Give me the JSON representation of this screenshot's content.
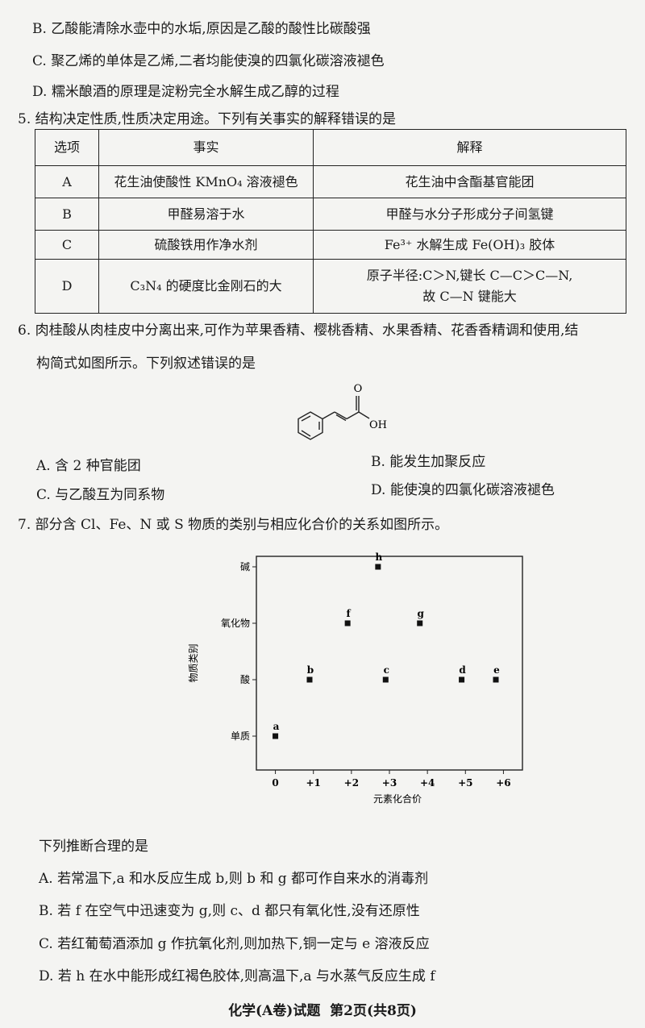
{
  "q4": {
    "options": [
      "B. 乙酸能清除水壶中的水垢,原因是乙酸的酸性比碳酸强",
      "C. 聚乙烯的单体是乙烯,二者均能使溴的四氯化碳溶液褪色",
      "D. 糯米酿酒的原理是淀粉完全水解生成乙醇的过程"
    ]
  },
  "q5": {
    "stem": "5. 结构决定性质,性质决定用途。下列有关事实的解释错误的是",
    "table": {
      "header": [
        "选项",
        "事实",
        "解释"
      ],
      "rows": [
        [
          "A",
          "花生油使酸性 KMnO₄ 溶液褪色",
          [
            "花生油中含酯基官能团"
          ]
        ],
        [
          "B",
          "甲醛易溶于水",
          [
            "甲醛与水分子形成分子间氢键"
          ]
        ],
        [
          "C",
          "硫酸铁用作净水剂",
          [
            "Fe³⁺ 水解生成 Fe(OH)₃ 胶体"
          ]
        ],
        [
          "D",
          "C₃N₄ 的硬度比金刚石的大",
          [
            "原子半径:C＞N,键长 C—C＞C—N,",
            "故 C—N 键能大"
          ]
        ]
      ]
    }
  },
  "q6": {
    "stem": [
      "6. 肉桂酸从肉桂皮中分离出来,可作为苹果香精、樱桃香精、水果香精、花香香精调和使用,结",
      "构简式如图所示。下列叙述错误的是"
    ],
    "structure": {
      "atoms": [
        "O",
        "OH"
      ]
    },
    "options": [
      "A. 含 2 种官能团",
      "B. 能发生加聚反应",
      "C. 与乙酸互为同系物",
      "D. 能使溴的四氯化碳溶液褪色"
    ]
  },
  "q7": {
    "stem": "7. 部分含 Cl、Fe、N 或 S 物质的类别与相应化合价的关系如图所示。",
    "chart": {
      "type": "scatter",
      "x_label": "元素化合价",
      "y_label": "物质类别",
      "y_categories": [
        "单质",
        "酸",
        "氧化物",
        "碱"
      ],
      "xlim": [
        -0.5,
        6.5
      ],
      "xticks": [
        0,
        {
          "value": 1,
          "label": "+1"
        },
        {
          "value": 2,
          "label": "+2"
        },
        {
          "value": 3,
          "label": "+3"
        },
        {
          "value": 4,
          "label": "+4"
        },
        {
          "value": 5,
          "label": "+5"
        },
        {
          "value": 6,
          "label": "+6"
        }
      ],
      "points": [
        {
          "label": "a",
          "x": 0,
          "y": "单质"
        },
        {
          "label": "b",
          "x": 0.9,
          "y": "酸"
        },
        {
          "label": "f",
          "x": 1.9,
          "y": "氧化物"
        },
        {
          "label": "h",
          "x": 2.7,
          "y": "碱"
        },
        {
          "label": "c",
          "x": 2.9,
          "y": "酸"
        },
        {
          "label": "g",
          "x": 3.8,
          "y": "氧化物"
        },
        {
          "label": "d",
          "x": 4.9,
          "y": "酸"
        },
        {
          "label": "e",
          "x": 5.8,
          "y": "酸"
        }
      ]
    },
    "prompt": "下列推断合理的是",
    "options": [
      "A. 若常温下,a 和水反应生成 b,则 b 和 g 都可作自来水的消毒剂",
      "B. 若 f 在空气中迅速变为 g,则 c、d 都只有氧化性,没有还原性",
      "C. 若红葡萄酒添加 g 作抗氧化剂,则加热下,铜一定与 e 溶液反应",
      "D. 若 h 在水中能形成红褐色胶体,则高温下,a 与水蒸气反应生成 f"
    ]
  },
  "footer": "化学(A卷)试题  第2页(共8页)"
}
